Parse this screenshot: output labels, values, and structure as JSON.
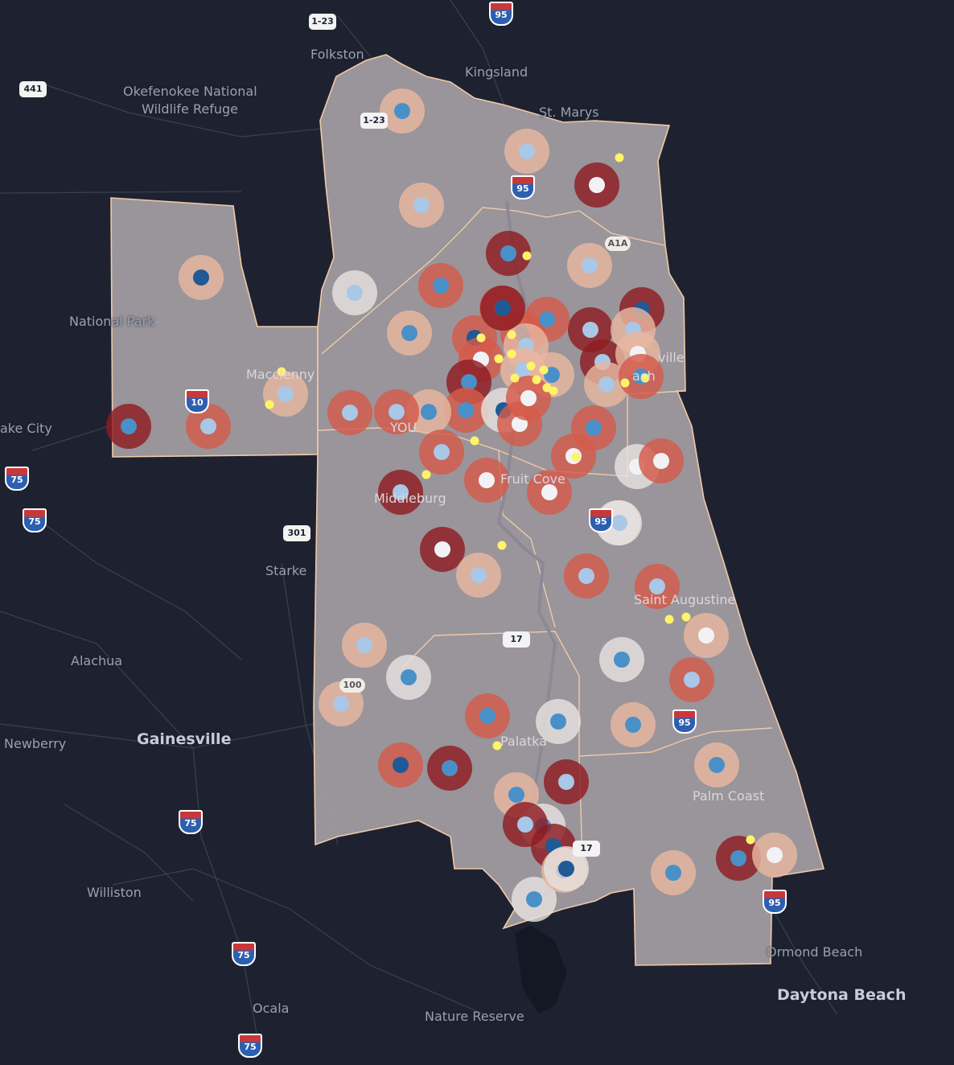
{
  "map": {
    "colors": {
      "background": "#1e2230",
      "region_fill": "#a39ea2",
      "region_border": "#f1c9a6",
      "ring_dark": "#8e1c22",
      "ring_mid": "#d45a4a",
      "ring_light": "#e8b7a0",
      "ring_pale": "#e6e2df",
      "dot_dark": "#1f5a96",
      "dot_mid": "#4a90c8",
      "dot_light": "#a9c7e6",
      "dot_white": "#f2f2f6",
      "marker_yellow": "#fff36a"
    },
    "places": [
      {
        "name": "Folkston"
      },
      {
        "name": "Kingsland"
      },
      {
        "name": "St. Marys"
      },
      {
        "name": "Okefenokee National"
      },
      {
        "name": "Wildlife Refuge"
      },
      {
        "name": "National Park"
      },
      {
        "name": "Macclenny"
      },
      {
        "name": "ake City"
      },
      {
        "name": "Starke"
      },
      {
        "name": "Alachua"
      },
      {
        "name": "Newberry"
      },
      {
        "name": "Gainesville"
      },
      {
        "name": "Williston"
      },
      {
        "name": "Ocala"
      },
      {
        "name": "Nature Reserve"
      },
      {
        "name": "Daytona Beach"
      },
      {
        "name": "Ormond Beach"
      },
      {
        "name": "Palm Coast"
      },
      {
        "name": "Palatka"
      },
      {
        "name": "Saint Augustine"
      },
      {
        "name": "Fruit Cove"
      },
      {
        "name": "Middleburg"
      },
      {
        "name": "ville"
      },
      {
        "name": "ach"
      },
      {
        "name": "YOU"
      }
    ],
    "shields": [
      {
        "label": "1-23",
        "kind": "us"
      },
      {
        "label": "95",
        "kind": "interstate"
      },
      {
        "label": "441",
        "kind": "us"
      },
      {
        "label": "1-23",
        "kind": "us"
      },
      {
        "label": "95",
        "kind": "interstate"
      },
      {
        "label": "A1A",
        "kind": "state"
      },
      {
        "label": "10",
        "kind": "interstate"
      },
      {
        "label": "75",
        "kind": "interstate"
      },
      {
        "label": "75",
        "kind": "interstate"
      },
      {
        "label": "301",
        "kind": "us"
      },
      {
        "label": "95",
        "kind": "interstate"
      },
      {
        "label": "17",
        "kind": "us"
      },
      {
        "label": "100",
        "kind": "state"
      },
      {
        "label": "95",
        "kind": "interstate"
      },
      {
        "label": "17",
        "kind": "us"
      },
      {
        "label": "75",
        "kind": "interstate"
      },
      {
        "label": "75",
        "kind": "interstate"
      },
      {
        "label": "95",
        "kind": "interstate"
      },
      {
        "label": "75",
        "kind": "interstate"
      }
    ],
    "markers": [
      {
        "ring": "light",
        "dot": "mid"
      },
      {
        "ring": "light",
        "dot": "light"
      },
      {
        "ring": "dark",
        "dot": "white"
      },
      {
        "ring": "light",
        "dot": "light"
      },
      {
        "ring": "light",
        "dot": "dark"
      },
      {
        "ring": "dark",
        "dot": "mid"
      },
      {
        "ring": "light",
        "dot": "light"
      },
      {
        "ring": "mid",
        "dot": "mid"
      },
      {
        "ring": "pale",
        "dot": "light"
      },
      {
        "ring": "light",
        "dot": "mid"
      },
      {
        "ring": "dark",
        "dot": "dark"
      },
      {
        "ring": "mid",
        "dot": "light"
      },
      {
        "ring": "dark",
        "dot": "light"
      },
      {
        "ring": "light",
        "dot": "light"
      },
      {
        "ring": "mid",
        "dot": "dark"
      },
      {
        "ring": "mid",
        "dot": "dark"
      },
      {
        "ring": "mid",
        "dot": "mid"
      },
      {
        "ring": "dark",
        "dot": "light"
      },
      {
        "ring": "light",
        "dot": "white"
      },
      {
        "ring": "mid",
        "dot": "white"
      },
      {
        "ring": "light",
        "dot": "light"
      },
      {
        "ring": "light",
        "dot": "light"
      },
      {
        "ring": "dark",
        "dot": "mid"
      },
      {
        "ring": "light",
        "dot": "mid"
      },
      {
        "ring": "light",
        "dot": "light"
      },
      {
        "ring": "mid",
        "dot": "mid"
      },
      {
        "ring": "mid",
        "dot": "mid"
      },
      {
        "ring": "light",
        "dot": "mid"
      },
      {
        "ring": "dark",
        "dot": "mid"
      },
      {
        "ring": "pale",
        "dot": "dark"
      },
      {
        "ring": "light",
        "dot": "light"
      },
      {
        "ring": "mid",
        "dot": "light"
      },
      {
        "ring": "mid",
        "dot": "white"
      },
      {
        "ring": "mid",
        "dot": "light"
      },
      {
        "ring": "mid",
        "dot": "light"
      },
      {
        "ring": "mid",
        "dot": "white"
      },
      {
        "ring": "mid",
        "dot": "mid"
      },
      {
        "ring": "dark",
        "dot": "light"
      },
      {
        "ring": "mid",
        "dot": "white"
      },
      {
        "ring": "mid",
        "dot": "white"
      },
      {
        "ring": "pale",
        "dot": "white"
      },
      {
        "ring": "mid",
        "dot": "white"
      },
      {
        "ring": "mid",
        "dot": "white"
      },
      {
        "ring": "pale",
        "dot": "white"
      },
      {
        "ring": "dark",
        "dot": "white"
      },
      {
        "ring": "light",
        "dot": "light"
      },
      {
        "ring": "mid",
        "dot": "light"
      },
      {
        "ring": "mid",
        "dot": "light"
      },
      {
        "ring": "light",
        "dot": "white"
      },
      {
        "ring": "light",
        "dot": "light"
      },
      {
        "ring": "pale",
        "dot": "mid"
      },
      {
        "ring": "light",
        "dot": "light"
      },
      {
        "ring": "pale",
        "dot": "mid"
      },
      {
        "ring": "mid",
        "dot": "light"
      },
      {
        "ring": "mid",
        "dot": "mid"
      },
      {
        "ring": "pale",
        "dot": "mid"
      },
      {
        "ring": "light",
        "dot": "mid"
      },
      {
        "ring": "dark",
        "dot": "light"
      },
      {
        "ring": "mid",
        "dot": "dark"
      },
      {
        "ring": "dark",
        "dot": "mid"
      },
      {
        "ring": "light",
        "dot": "mid"
      },
      {
        "ring": "pale",
        "dot": "mid"
      },
      {
        "ring": "dark",
        "dot": "light"
      },
      {
        "ring": "pale",
        "dot": "mid"
      },
      {
        "ring": "dark",
        "dot": "dark"
      },
      {
        "ring": "light",
        "dot": "dark"
      },
      {
        "ring": "pale",
        "dot": "dark"
      },
      {
        "ring": "light",
        "dot": "mid"
      },
      {
        "ring": "dark",
        "dot": "mid"
      },
      {
        "ring": "light",
        "dot": "white"
      },
      {
        "ring": "light",
        "dot": "mid"
      },
      {
        "ring": "mid",
        "dot": "light"
      },
      {
        "ring": "dark",
        "dot": "dark"
      },
      {
        "ring": "pale",
        "dot": "light"
      }
    ],
    "yellow_markers_count": 24
  }
}
